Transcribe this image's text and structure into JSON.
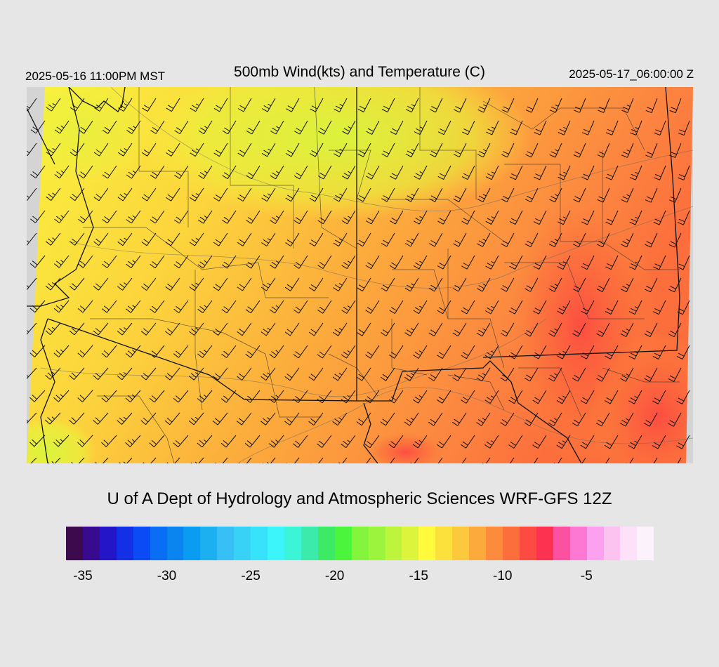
{
  "header": {
    "valid_local": "2025-05-16 11:00PM MST",
    "title": "500mb Wind(kts) and Temperature (C)",
    "valid_utc": "2025-05-17_06:00:00 Z"
  },
  "credit": "U of A Dept of Hydrology and Atmospheric Sciences WRF-GFS 12Z",
  "map": {
    "variable": "500mb temperature (C) shaded with wind barbs (kts)",
    "predominant_wind": "southwesterly, 20-35 kts",
    "coldest_region": "northern Nevada / southern Idaho (about -17 C)",
    "warmest_region": "New Mexico / west Texas (about -10 C)",
    "background_color": "#d4d4d4"
  },
  "colorbar": {
    "colors": [
      "#3d0a4d",
      "#380a8f",
      "#2515c8",
      "#1430e6",
      "#0a4bf5",
      "#0a6ef5",
      "#0a85f0",
      "#0a9cf0",
      "#1cb0f0",
      "#37c0f5",
      "#37d2f5",
      "#37e3fa",
      "#3cf5fa",
      "#3cf5d6",
      "#3ceaab",
      "#3cea64",
      "#4bf53c",
      "#82f53c",
      "#9cf53c",
      "#bdf53c",
      "#dcf53c",
      "#fffa3c",
      "#fce13c",
      "#fcc83c",
      "#fcaa3c",
      "#fc8c3c",
      "#fc6e3c",
      "#fc4b41",
      "#fc3250",
      "#fc50a0",
      "#fc78d2",
      "#fca0f0",
      "#fcc3f0",
      "#fce1f8",
      "#fcf2fc"
    ],
    "ticks": [
      {
        "label": "-35",
        "index": 1
      },
      {
        "label": "-30",
        "index": 6
      },
      {
        "label": "-25",
        "index": 11
      },
      {
        "label": "-20",
        "index": 16
      },
      {
        "label": "-15",
        "index": 21
      },
      {
        "label": "-10",
        "index": 26
      },
      {
        "label": "-5",
        "index": 31
      }
    ]
  }
}
